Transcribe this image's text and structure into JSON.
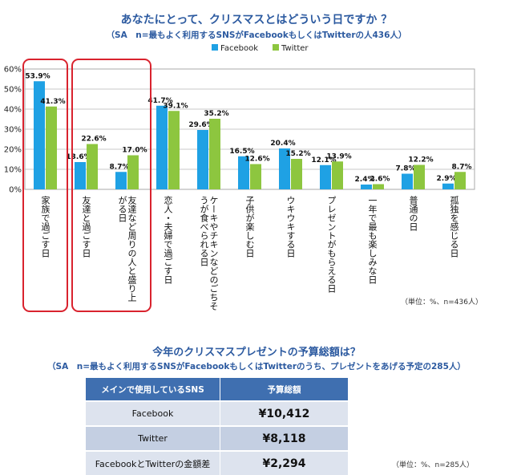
{
  "chart_data": {
    "type": "bar",
    "title": "あなたにとって、クリスマスとはどういう日ですか ？",
    "subtitle": "（SA　n=最もよく利用するSNSがFacebookもしくはTwitterの人436人）",
    "categories": [
      "家族で過ごす日",
      "友達と過ごす日",
      "友達など周りの人と盛り上がる日",
      "恋人・夫婦で過ごす日",
      "ケーキやチキンなどのごちそうが食べられる日",
      "子供が楽しむ日",
      "ウキウキする日",
      "プレゼントがもらえる日",
      "一年で最も楽しみな日",
      "普通の日",
      "孤独を感じる日"
    ],
    "category_lines": [
      [
        "家族で過ごす日"
      ],
      [
        "友達と過ごす日"
      ],
      [
        "友達など周りの人と盛り上",
        "がる日"
      ],
      [
        "恋人・夫婦で過ごす日"
      ],
      [
        "ケーキやチキンなどのごちそ",
        "うが食べられる日"
      ],
      [
        "子供が楽しむ日"
      ],
      [
        "ウキウキする日"
      ],
      [
        "プレゼントがもらえる日"
      ],
      [
        "一年で最も楽しみな日"
      ],
      [
        "普通の日"
      ],
      [
        "孤独を感じる日"
      ]
    ],
    "series": [
      {
        "name": "Facebook",
        "color": "#1fa1e4",
        "values": [
          53.9,
          13.6,
          8.7,
          41.7,
          29.6,
          16.5,
          20.4,
          12.1,
          2.4,
          7.8,
          2.9
        ]
      },
      {
        "name": "Twitter",
        "color": "#8dc63f",
        "values": [
          41.3,
          22.6,
          17.0,
          39.1,
          35.2,
          12.6,
          15.2,
          13.9,
          2.6,
          12.2,
          8.7
        ]
      }
    ],
    "y_ticks": [
      "0%",
      "10%",
      "20%",
      "30%",
      "40%",
      "50%",
      "60%"
    ],
    "ylim": [
      0,
      60
    ],
    "grid": true,
    "legend": "top-center",
    "highlighted_categories": [
      0,
      1,
      2
    ],
    "highlight_color": "#d9232e",
    "note": "（単位：%、n=436人）"
  },
  "table": {
    "title": "今年のクリスマスプレゼントの予算総額は？",
    "subtitle": "（SA　n=最もよく利用するSNSがFacebookもしくはTwitterのうち、プレゼントをあげる予定の285人）",
    "headers": [
      "メインで使用しているSNS",
      "予算総額"
    ],
    "rows": [
      {
        "label": "Facebook",
        "amount": "¥10,412"
      },
      {
        "label": "Twitter",
        "amount": "¥8,118"
      },
      {
        "label": "FacebookとTwitterの金額差",
        "amount": "¥2,294"
      }
    ],
    "note": "（単位：%、n=285人）"
  }
}
